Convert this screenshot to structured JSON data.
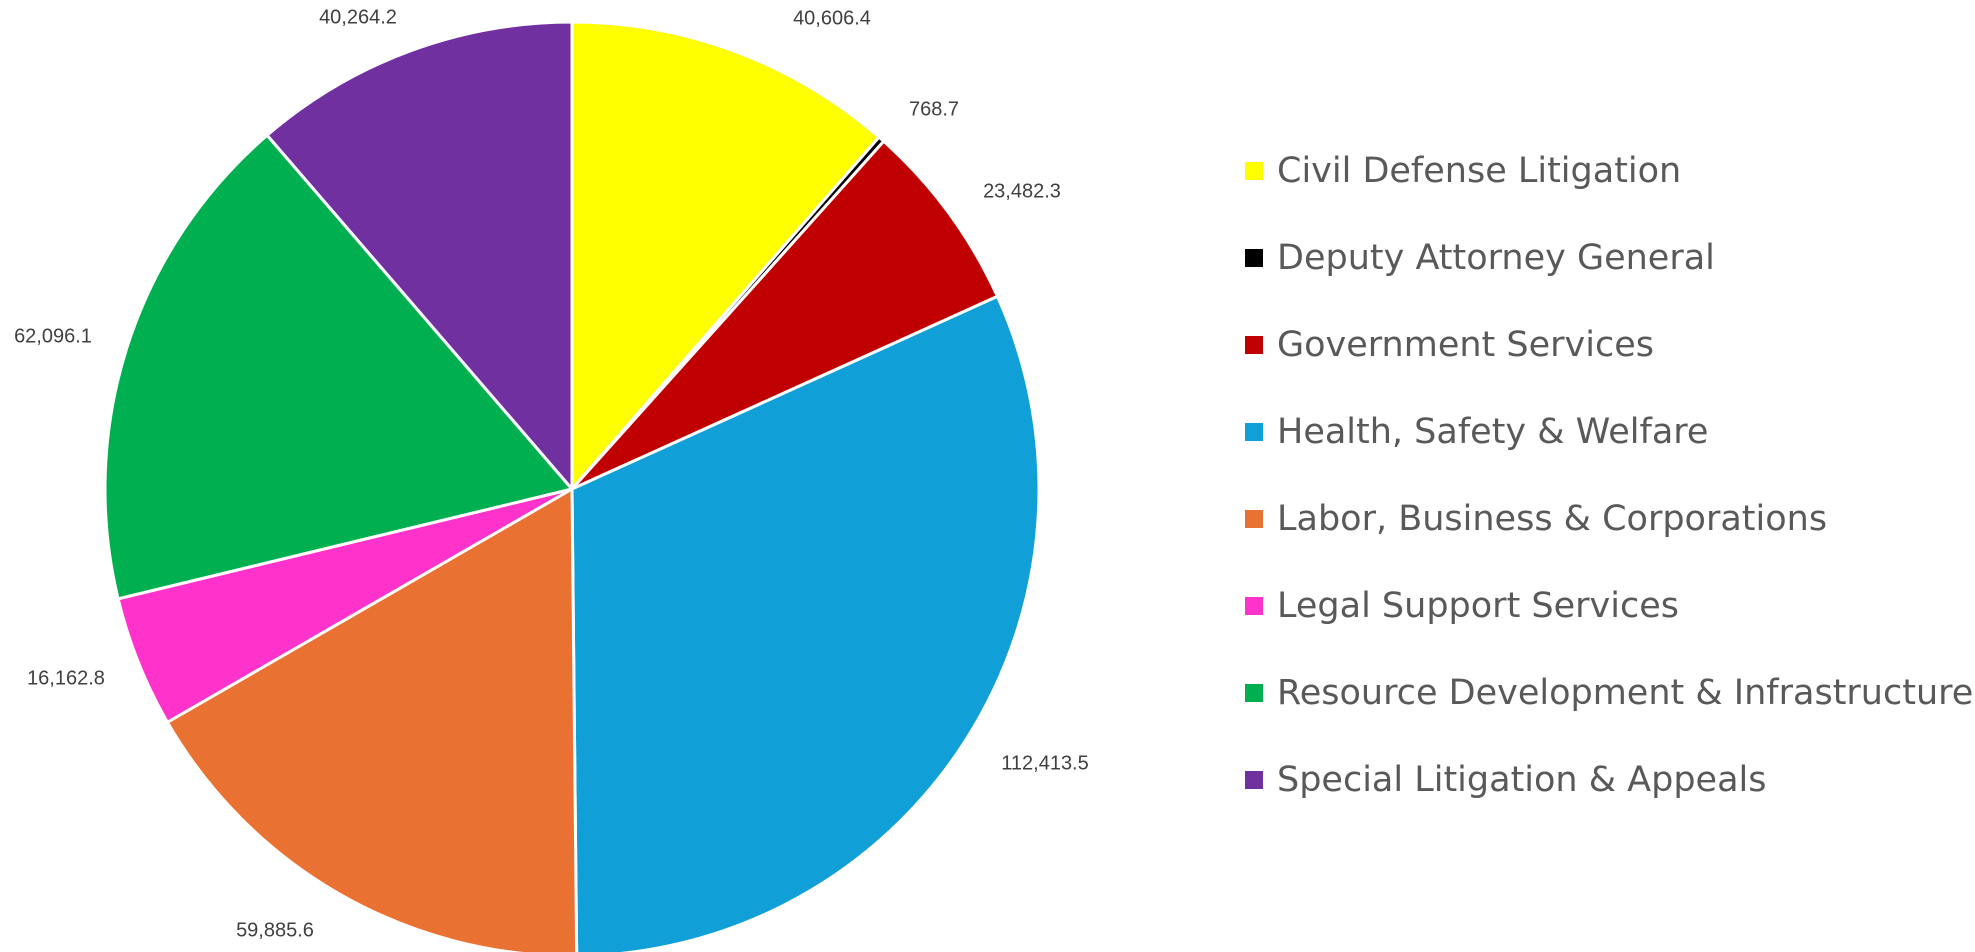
{
  "chart_data": {
    "type": "pie",
    "title": "",
    "legend_position": "right",
    "start_angle_deg": 0,
    "direction": "clockwise",
    "slices": [
      {
        "label": "Civil Defense Litigation",
        "value": 40606.4,
        "value_text": "40,606.4",
        "color": "#FFFF00"
      },
      {
        "label": "Deputy Attorney General",
        "value": 768.7,
        "value_text": "768.7",
        "color": "#000000"
      },
      {
        "label": "Government Services",
        "value": 23482.3,
        "value_text": "23,482.3",
        "color": "#C00000"
      },
      {
        "label": "Health, Safety & Welfare",
        "value": 112413.5,
        "value_text": "112,413.5",
        "color": "#119FD8"
      },
      {
        "label": "Labor, Business & Corporations",
        "value": 59885.6,
        "value_text": "59,885.6",
        "color": "#E97132"
      },
      {
        "label": "Legal Support Services",
        "value": 16162.8,
        "value_text": "16,162.8",
        "color": "#FF33CC"
      },
      {
        "label": "Resource Development & Infrastructure",
        "value": 62096.1,
        "value_text": "62,096.1",
        "color": "#00B050"
      },
      {
        "label": "Special Litigation & Appeals",
        "value": 40264.2,
        "value_text": "40,264.2",
        "color": "#7030A0"
      }
    ]
  }
}
